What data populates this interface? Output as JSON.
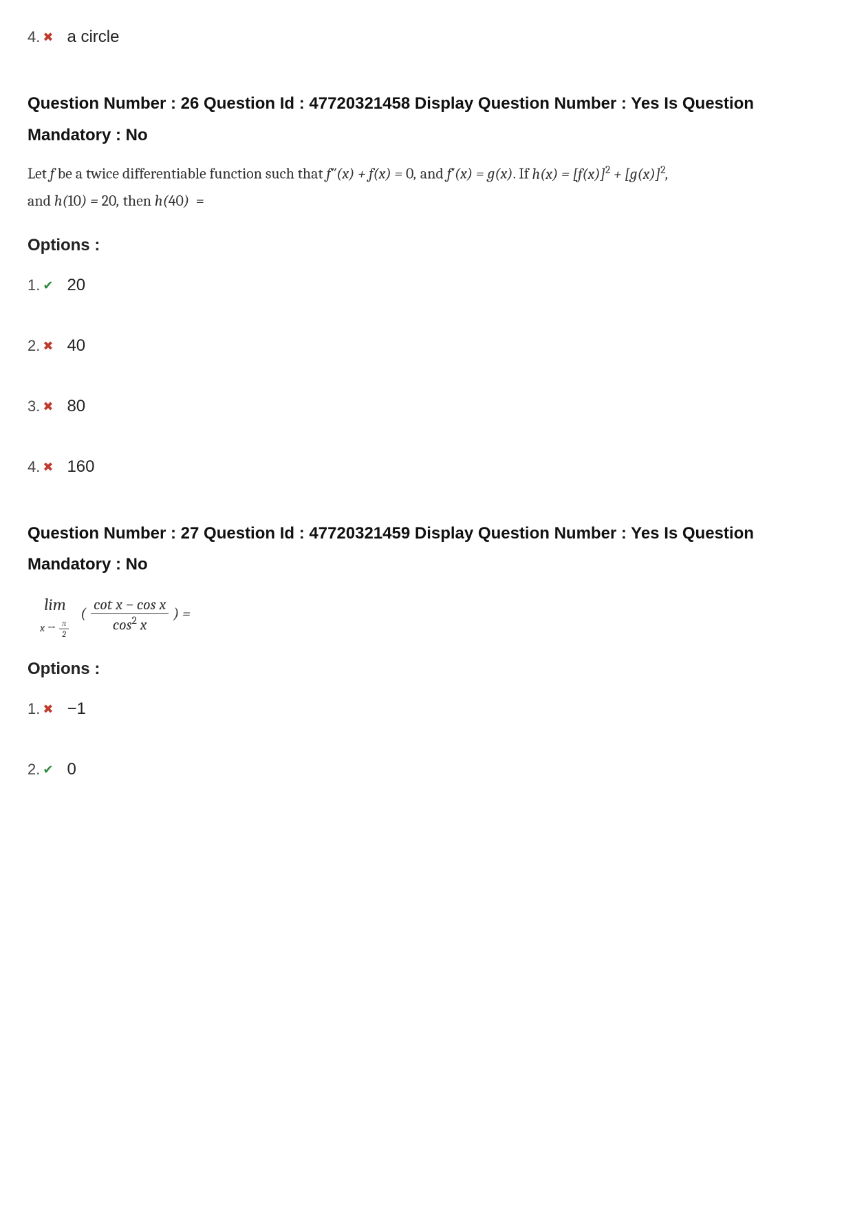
{
  "colors": {
    "correct": "#2e8b3d",
    "wrong": "#c0392b",
    "text": "#222222",
    "bg": "#ffffff"
  },
  "icons": {
    "correct": "✔",
    "wrong": "✖"
  },
  "prior_option": {
    "number": "4.",
    "status": "wrong",
    "text": "a circle"
  },
  "q26": {
    "header": "Question Number : 26 Question Id : 47720321458 Display Question Number : Yes Is Question Mandatory : No",
    "body_html": "Let <span class='math'>f</span> be a twice differentiable function such that <span class='math'>f″(x) + f(x) = <span class='upright'>0</span>,</span> and <span class='math'>f′(x) = g(x)</span>. If <span class='math'>h(x) = [f(x)]<span class='sup upright'>2</span> + [g(x)]<span class='sup upright'>2</span>,</span><br>and <span class='math'>h(<span class='upright'>10</span>) = <span class='upright'>20</span>,</span> then <span class='math'>h(<span class='upright'>40</span>)</span>&nbsp; =",
    "options_label": "Options :",
    "options": [
      {
        "n": "1.",
        "status": "correct",
        "text": "20"
      },
      {
        "n": "2.",
        "status": "wrong",
        "text": "40"
      },
      {
        "n": "3.",
        "status": "wrong",
        "text": "80"
      },
      {
        "n": "4.",
        "status": "wrong",
        "text": "160"
      }
    ]
  },
  "q27": {
    "header": "Question Number : 27 Question Id : 47720321459 Display Question Number : Yes Is Question Mandatory : No",
    "limit_top": "lim",
    "limit_sub_html": "x → <span class='frac' style='font-size:12px;'><span class='num'>π</span><span class='den'>2</span></span>",
    "frac_num": "cot x − cos x",
    "frac_den_html": "cos<span class='sup upright'>2</span> x",
    "after_frac": ")  =",
    "options_label": "Options :",
    "options": [
      {
        "n": "1.",
        "status": "wrong",
        "text": "−1"
      },
      {
        "n": "2.",
        "status": "correct",
        "text": "0"
      }
    ]
  }
}
